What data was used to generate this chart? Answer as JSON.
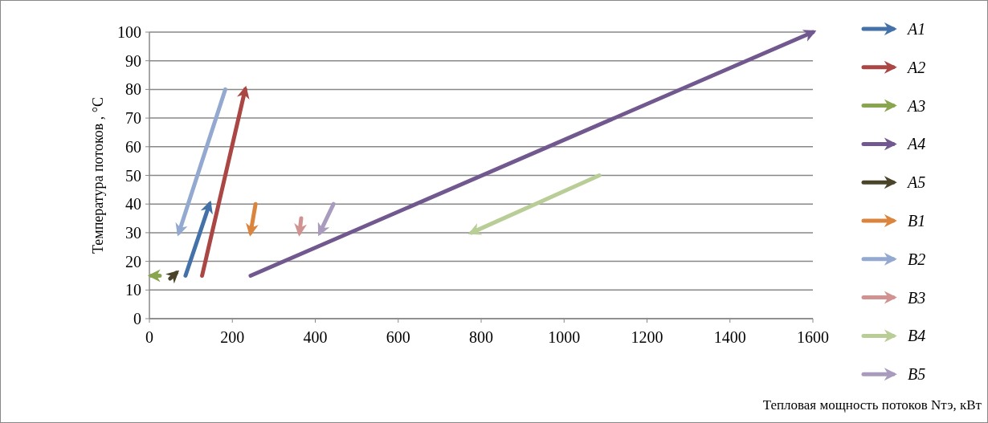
{
  "chart_data": {
    "type": "line",
    "xlabel": "Тепловая мощность потоков  Nтэ, кВт",
    "ylabel": "Температура потоков , °С",
    "xlim": [
      0,
      1600
    ],
    "xticks": [
      0,
      200,
      400,
      600,
      800,
      1000,
      1200,
      1400,
      1600
    ],
    "ylim": [
      0,
      100
    ],
    "yticks": [
      0,
      10,
      20,
      30,
      40,
      50,
      60,
      70,
      80,
      90,
      100
    ],
    "grid": "y",
    "legend": "right",
    "line_style": "solid",
    "series": [
      {
        "name": "A1",
        "color": "#4472a8",
        "x": [
          87,
          145
        ],
        "values": [
          15,
          40
        ]
      },
      {
        "name": "A2",
        "color": "#aa4643",
        "x": [
          127,
          231
        ],
        "values": [
          15,
          80
        ]
      },
      {
        "name": "A3",
        "color": "#89a54e",
        "x": [
          25,
          5
        ],
        "values": [
          15,
          15
        ]
      },
      {
        "name": "A4",
        "color": "#71588f",
        "x": [
          244,
          1600
        ],
        "values": [
          15,
          100
        ]
      },
      {
        "name": "A5",
        "color": "#4a452a",
        "x": [
          50,
          65
        ],
        "values": [
          14,
          16
        ]
      },
      {
        "name": "B1",
        "color": "#db843d",
        "x": [
          256,
          244
        ],
        "values": [
          40,
          30
        ]
      },
      {
        "name": "B2",
        "color": "#93a9cf",
        "x": [
          183,
          71
        ],
        "values": [
          80,
          30
        ]
      },
      {
        "name": "B3",
        "color": "#d19392",
        "x": [
          366,
          362
        ],
        "values": [
          35,
          30
        ]
      },
      {
        "name": "B4",
        "color": "#b9cd96",
        "x": [
          1085,
          777
        ],
        "values": [
          50,
          30
        ]
      },
      {
        "name": "B5",
        "color": "#a99bbd",
        "x": [
          444,
          411
        ],
        "values": [
          40,
          30
        ]
      }
    ]
  }
}
